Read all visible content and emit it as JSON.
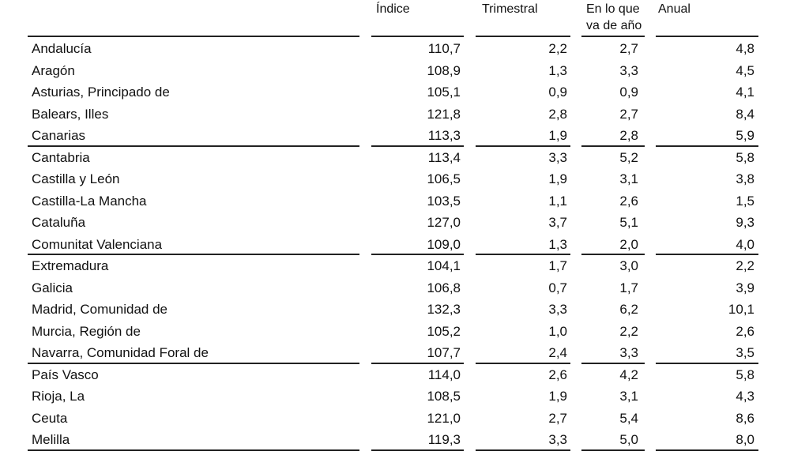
{
  "table": {
    "columns": [
      "Índice",
      "Trimestral",
      "En lo que va de año",
      "Anual"
    ],
    "header_lines": {
      "indice": "Índice",
      "trimestral": "Trimestral",
      "ytd_line1": "En lo que",
      "ytd_line2": "va de año",
      "anual": "Anual"
    },
    "rows": [
      {
        "region": "Andalucía",
        "indice": "110,7",
        "trimestral": "2,2",
        "ytd": "2,7",
        "anual": "4,8"
      },
      {
        "region": "Aragón",
        "indice": "108,9",
        "trimestral": "1,3",
        "ytd": "3,3",
        "anual": "4,5"
      },
      {
        "region": "Asturias, Principado de",
        "indice": "105,1",
        "trimestral": "0,9",
        "ytd": "0,9",
        "anual": "4,1"
      },
      {
        "region": "Balears, Illes",
        "indice": "121,8",
        "trimestral": "2,8",
        "ytd": "2,7",
        "anual": "8,4"
      },
      {
        "region": "Canarias",
        "indice": "113,3",
        "trimestral": "1,9",
        "ytd": "2,8",
        "anual": "5,9"
      },
      {
        "region": "Cantabria",
        "indice": "113,4",
        "trimestral": "3,3",
        "ytd": "5,2",
        "anual": "5,8"
      },
      {
        "region": "Castilla y León",
        "indice": "106,5",
        "trimestral": "1,9",
        "ytd": "3,1",
        "anual": "3,8"
      },
      {
        "region": "Castilla-La Mancha",
        "indice": "103,5",
        "trimestral": "1,1",
        "ytd": "2,6",
        "anual": "1,5"
      },
      {
        "region": "Cataluña",
        "indice": "127,0",
        "trimestral": "3,7",
        "ytd": "5,1",
        "anual": "9,3"
      },
      {
        "region": "Comunitat Valenciana",
        "indice": "109,0",
        "trimestral": "1,3",
        "ytd": "2,0",
        "anual": "4,0"
      },
      {
        "region": "Extremadura",
        "indice": "104,1",
        "trimestral": "1,7",
        "ytd": "3,0",
        "anual": "2,2"
      },
      {
        "region": "Galicia",
        "indice": "106,8",
        "trimestral": "0,7",
        "ytd": "1,7",
        "anual": "3,9"
      },
      {
        "region": "Madrid, Comunidad de",
        "indice": "132,3",
        "trimestral": "3,3",
        "ytd": "6,2",
        "anual": "10,1"
      },
      {
        "region": "Murcia, Región de",
        "indice": "105,2",
        "trimestral": "1,0",
        "ytd": "2,2",
        "anual": "2,6"
      },
      {
        "region": "Navarra, Comunidad Foral de",
        "indice": "107,7",
        "trimestral": "2,4",
        "ytd": "3,3",
        "anual": "3,5"
      },
      {
        "region": "País Vasco",
        "indice": "114,0",
        "trimestral": "2,6",
        "ytd": "4,2",
        "anual": "5,8"
      },
      {
        "region": "Rioja, La",
        "indice": "108,5",
        "trimestral": "1,9",
        "ytd": "3,1",
        "anual": "4,3"
      },
      {
        "region": "Ceuta",
        "indice": "121,0",
        "trimestral": "2,7",
        "ytd": "5,4",
        "anual": "8,6"
      },
      {
        "region": "Melilla",
        "indice": "119,3",
        "trimestral": "3,3",
        "ytd": "5,0",
        "anual": "8,0"
      }
    ]
  }
}
